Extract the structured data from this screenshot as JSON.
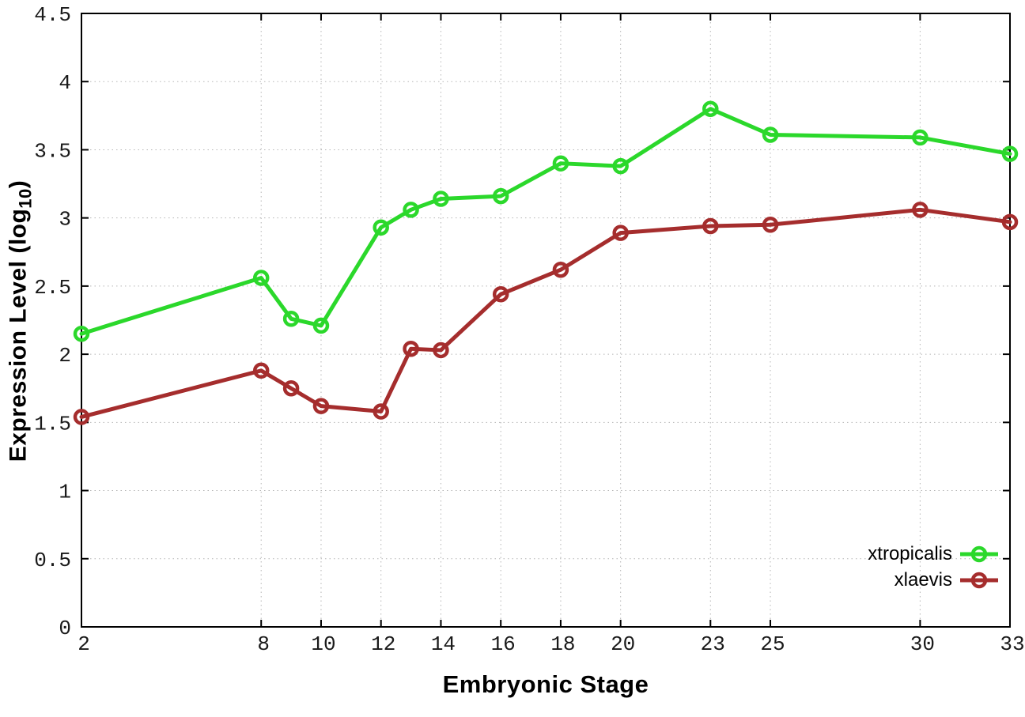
{
  "chart_data": {
    "type": "line",
    "title": "",
    "xlabel": "Embryonic Stage",
    "ylabel": {
      "pre": "Expression Level (log",
      "sub": "10",
      "post": ")"
    },
    "xlim": [
      2,
      33
    ],
    "ylim": [
      0,
      4.5
    ],
    "grid": true,
    "legend_position": "bottom-right",
    "x_ticks": {
      "values": [
        2,
        8,
        10,
        12,
        14,
        16,
        18,
        20,
        23,
        25,
        30,
        33
      ],
      "labels": [
        "2",
        "8",
        "10",
        "12",
        "14",
        "16",
        "18",
        "20",
        "23",
        "25",
        "30",
        "33"
      ]
    },
    "y_ticks": {
      "values": [
        0,
        0.5,
        1,
        1.5,
        2,
        2.5,
        3,
        3.5,
        4,
        4.5
      ],
      "labels": [
        "0",
        "0.5",
        "1",
        "1.5",
        "2",
        "2.5",
        "3",
        "3.5",
        "4",
        "4.5"
      ]
    },
    "x": [
      2,
      8,
      9,
      10,
      12,
      13,
      14,
      16,
      18,
      20,
      23,
      25,
      30,
      33
    ],
    "series": [
      {
        "name": "xtropicalis",
        "color": "#2bd82b",
        "values": [
          2.15,
          2.56,
          2.26,
          2.21,
          2.93,
          3.06,
          3.14,
          3.16,
          3.4,
          3.38,
          3.8,
          3.61,
          3.59,
          3.47
        ]
      },
      {
        "name": "xlaevis",
        "color": "#a52d2d",
        "values": [
          1.54,
          1.88,
          1.75,
          1.62,
          1.58,
          2.04,
          2.03,
          2.44,
          2.62,
          2.89,
          2.94,
          2.95,
          3.06,
          2.97
        ]
      }
    ],
    "colors": {
      "background": "#ffffff",
      "grid": "#b5b5b5",
      "axis": "#000000",
      "tick_text": "#1a1a1a"
    }
  }
}
